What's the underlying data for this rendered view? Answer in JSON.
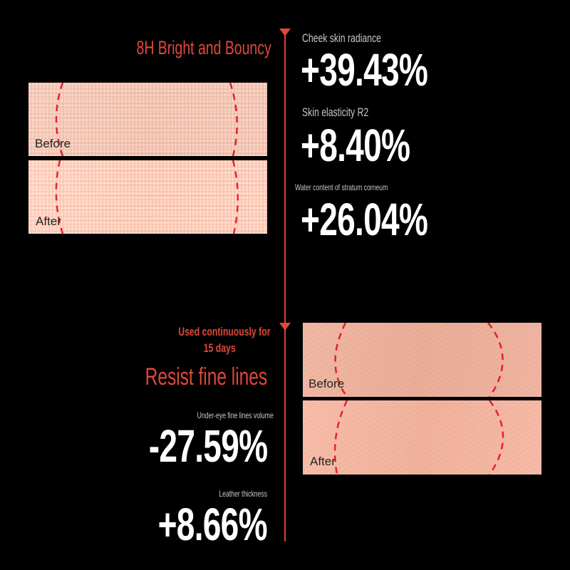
{
  "colors": {
    "accent": "#e0473a",
    "background": "#000000",
    "value": "#ffffff",
    "label": "#c8c8c8"
  },
  "section1": {
    "title": "8H Bright and Bouncy",
    "before_label": "Before",
    "after_label": "After",
    "stats": [
      {
        "label": "Cheek skin radiance",
        "value": "+39.43%"
      },
      {
        "label": "Skin elasticity R2",
        "value": "+8.40%"
      },
      {
        "label": "Water content of stratum corneum",
        "value": "+26.04%"
      }
    ]
  },
  "section2": {
    "subtitle_line1": "Used continuously for",
    "subtitle_line2": "15 days",
    "title": "Resist fine lines",
    "before_label": "Before",
    "after_label": "After",
    "stats": [
      {
        "label": "Under-eye fine lines volume",
        "value": "-27.59%"
      },
      {
        "label": "Leather thickness",
        "value": "+8.66%"
      }
    ]
  }
}
